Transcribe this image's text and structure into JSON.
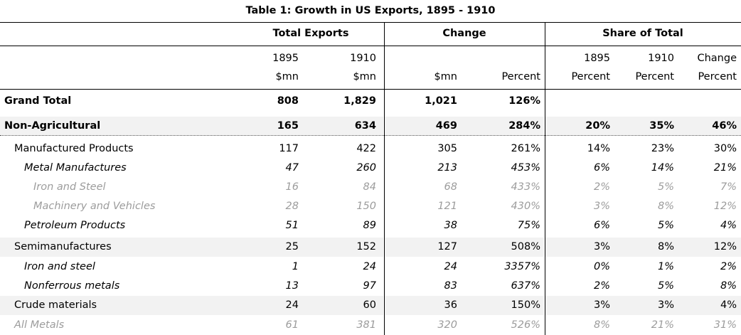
{
  "title": "Table 1: Growth in US Exports, 1895 - 1910",
  "groups": {
    "total_exports": "Total Exports",
    "change": "Change",
    "share_of_total": "Share of Total"
  },
  "subheaders": {
    "row1": [
      "1895",
      "1910",
      "",
      "",
      "1895",
      "1910",
      "Change"
    ],
    "row2": [
      "$mn",
      "$mn",
      "$mn",
      "Percent",
      "Percent",
      "Percent",
      "Percent"
    ]
  },
  "rows": [
    {
      "label": "Grand Total",
      "level": 0,
      "style": "bold",
      "shaded": false,
      "values": [
        "808",
        "1,829",
        "1,021",
        "126%",
        "",
        "",
        ""
      ]
    },
    {
      "label": "Non-Agricultural",
      "level": 0,
      "style": "bold",
      "shaded": true,
      "values": [
        "165",
        "634",
        "469",
        "284%",
        "20%",
        "35%",
        "46%"
      ]
    },
    {
      "label": "Manufactured Products",
      "level": 1,
      "style": "normal",
      "shaded": false,
      "values": [
        "117",
        "422",
        "305",
        "261%",
        "14%",
        "23%",
        "30%"
      ]
    },
    {
      "label": "Metal Manufactures",
      "level": 2,
      "style": "italic",
      "shaded": false,
      "values": [
        "47",
        "260",
        "213",
        "453%",
        "6%",
        "14%",
        "21%"
      ]
    },
    {
      "label": "Iron and Steel",
      "level": 3,
      "style": "gray",
      "shaded": false,
      "values": [
        "16",
        "84",
        "68",
        "433%",
        "2%",
        "5%",
        "7%"
      ]
    },
    {
      "label": "Machinery and Vehicles",
      "level": 3,
      "style": "gray",
      "shaded": false,
      "values": [
        "28",
        "150",
        "121",
        "430%",
        "3%",
        "8%",
        "12%"
      ]
    },
    {
      "label": "Petroleum Products",
      "level": 2,
      "style": "italic",
      "shaded": false,
      "values": [
        "51",
        "89",
        "38",
        "75%",
        "6%",
        "5%",
        "4%"
      ]
    },
    {
      "label": "Semimanufactures",
      "level": 1,
      "style": "normal",
      "shaded": true,
      "values": [
        "25",
        "152",
        "127",
        "508%",
        "3%",
        "8%",
        "12%"
      ]
    },
    {
      "label": "Iron and steel",
      "level": 2,
      "style": "italic",
      "shaded": false,
      "values": [
        "1",
        "24",
        "24",
        "3357%",
        "0%",
        "1%",
        "2%"
      ]
    },
    {
      "label": "Nonferrous metals",
      "level": 2,
      "style": "italic",
      "shaded": false,
      "values": [
        "13",
        "97",
        "83",
        "637%",
        "2%",
        "5%",
        "8%"
      ]
    },
    {
      "label": "Crude materials",
      "level": 1,
      "style": "normal",
      "shaded": true,
      "values": [
        "24",
        "60",
        "36",
        "150%",
        "3%",
        "3%",
        "4%"
      ]
    },
    {
      "label": "All Metals",
      "level": 1,
      "style": "gray",
      "shaded": false,
      "values": [
        "61",
        "381",
        "320",
        "526%",
        "8%",
        "21%",
        "31%"
      ]
    }
  ],
  "chart_data": {
    "type": "table",
    "title": "Table 1: Growth in US Exports, 1895 - 1910",
    "columns": [
      "Total Exports 1895 $mn",
      "Total Exports 1910 $mn",
      "Change $mn",
      "Change Percent",
      "Share of Total 1895 Percent",
      "Share of Total 1910 Percent",
      "Share of Total Change Percent"
    ],
    "row_labels": [
      "Grand Total",
      "Non-Agricultural",
      "Manufactured Products",
      "Metal Manufactures",
      "Iron and Steel",
      "Machinery and Vehicles",
      "Petroleum Products",
      "Semimanufactures",
      "Iron and steel",
      "Nonferrous metals",
      "Crude materials",
      "All Metals"
    ]
  }
}
